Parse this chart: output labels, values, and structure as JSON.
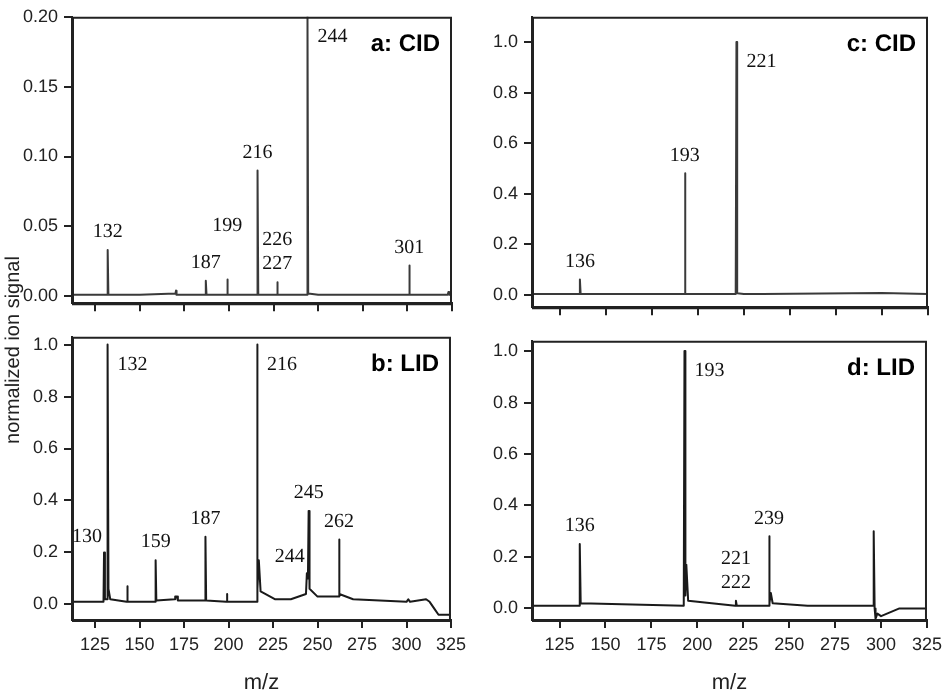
{
  "chart_data": [
    {
      "type": "line",
      "title": "a: CID",
      "ylabel": "normalized ion signal",
      "tick_labels": "y",
      "marker": "none",
      "xlim": [
        112,
        325
      ],
      "ylim": [
        -0.005,
        0.2
      ],
      "xticks": [
        125,
        150,
        175,
        200,
        225,
        250,
        275,
        300,
        325
      ],
      "yticks": [
        {
          "value": 0,
          "label": "0.00"
        },
        0.05,
        {
          "value": 0.1,
          "label": "0.10"
        },
        0.15,
        {
          "value": 0.2,
          "label": "0.20"
        }
      ],
      "x": [
        112,
        125,
        131.6,
        132,
        132.4,
        150,
        170,
        170.3,
        170.6,
        186.6,
        187,
        187.4,
        198.6,
        199,
        199.4,
        215.6,
        216,
        216.4,
        226.6,
        227,
        227.4,
        243.6,
        244,
        244.4,
        250,
        300.6,
        301,
        301.4,
        322.6,
        323,
        323.4,
        325
      ],
      "series": [
        {
          "color": "#3a3a3a",
          "values": [
            0.001,
            0.001,
            0.001,
            0.033,
            0.001,
            0.001,
            0.002,
            0.004,
            0.001,
            0.001,
            0.011,
            0.001,
            0.001,
            0.012,
            0.001,
            0.001,
            0.09,
            0.001,
            0.001,
            0.01,
            0.001,
            0.001,
            0.2,
            0.002,
            0.001,
            0.001,
            0.022,
            0.001,
            0.001,
            0.003,
            0.001,
            0.001
          ]
        }
      ],
      "annotations": [
        {
          "text": "132",
          "x": 132,
          "y": 0.033
        },
        {
          "text": "187",
          "x": 187,
          "y": 0.011
        },
        {
          "text": "199",
          "x": 199,
          "y": 0.012
        },
        {
          "text": "216",
          "x": 216,
          "y": 0.09
        },
        {
          "text": "226",
          "x": 227,
          "y": 0.01
        },
        {
          "text": "227",
          "x": 227,
          "y": 0.01
        },
        {
          "text": "244",
          "x": 244,
          "y": 0.2
        },
        {
          "text": "301",
          "x": 301,
          "y": 0.022
        }
      ]
    },
    {
      "type": "line",
      "title": "b: LID",
      "xlabel": "m/z",
      "marker": "none",
      "xlim": [
        112,
        325
      ],
      "ylim": [
        -0.06,
        1.03
      ],
      "xticks": [
        125,
        150,
        175,
        200,
        225,
        250,
        275,
        300,
        325
      ],
      "yticks": [
        {
          "value": 0,
          "label": "0.0"
        },
        0.2,
        0.4,
        0.6,
        0.8,
        {
          "value": 1,
          "label": "1.0"
        }
      ],
      "x": [
        112,
        125,
        129.7,
        130,
        130.5,
        131.6,
        132,
        132.5,
        133.5,
        142.7,
        143,
        143.4,
        158.7,
        159,
        159.4,
        169.7,
        170,
        171,
        171.5,
        186.7,
        187,
        187.4,
        198.7,
        199,
        199.4,
        213,
        215.7,
        216,
        216.4,
        217,
        218,
        226,
        235,
        243.5,
        244,
        244.6,
        245,
        245.5,
        250,
        261.6,
        262,
        262.5,
        270,
        300,
        301,
        302,
        311,
        313,
        316,
        318,
        320,
        325
      ],
      "series": [
        {
          "color": "#1a1a1a",
          "values": [
            0.01,
            0.01,
            0.01,
            0.2,
            0.02,
            0.02,
            1.0,
            0.06,
            0.02,
            0.01,
            0.07,
            0.01,
            0.01,
            0.17,
            0.015,
            0.02,
            0.03,
            0.03,
            0.015,
            0.015,
            0.26,
            0.015,
            0.01,
            0.04,
            0.01,
            0.01,
            0.01,
            1.0,
            0.06,
            0.17,
            0.05,
            0.02,
            0.02,
            0.04,
            0.12,
            0.1,
            0.36,
            0.06,
            0.03,
            0.03,
            0.25,
            0.04,
            0.02,
            0.01,
            0.02,
            0.01,
            0.02,
            0.01,
            -0.02,
            -0.04,
            -0.04,
            -0.04
          ]
        }
      ],
      "annotations": [
        {
          "text": "130",
          "x": 130,
          "y": 0.2
        },
        {
          "text": "132",
          "x": 132,
          "y": 1.0
        },
        {
          "text": "159",
          "x": 159,
          "y": 0.17
        },
        {
          "text": "187",
          "x": 187,
          "y": 0.26
        },
        {
          "text": "216",
          "x": 216,
          "y": 1.0
        },
        {
          "text": "244",
          "x": 244,
          "y": 0.12
        },
        {
          "text": "245",
          "x": 245,
          "y": 0.36
        },
        {
          "text": "262",
          "x": 262,
          "y": 0.25
        }
      ]
    },
    {
      "type": "line",
      "title": "c: CID",
      "tick_labels": "y",
      "marker": "none",
      "xlim": [
        110,
        325
      ],
      "ylim": [
        -0.05,
        1.1
      ],
      "xticks": [
        125,
        150,
        175,
        200,
        225,
        250,
        275,
        300,
        325
      ],
      "yticks": [
        {
          "value": 0,
          "label": "0.0"
        },
        0.2,
        0.4,
        0.6,
        0.8,
        {
          "value": 1,
          "label": "1.0"
        }
      ],
      "x": [
        110,
        135.6,
        136,
        136.4,
        192.6,
        193,
        193.4,
        220.6,
        221,
        221.4,
        225,
        300,
        325
      ],
      "series": [
        {
          "color": "#3a3a3a",
          "values": [
            0.002,
            0.002,
            0.06,
            0.002,
            0.002,
            0.48,
            0.002,
            0.002,
            1.0,
            0.005,
            0.002,
            0.006,
            0.002
          ]
        }
      ],
      "annotations": [
        {
          "text": "136",
          "x": 136,
          "y": 0.06
        },
        {
          "text": "193",
          "x": 193,
          "y": 0.48
        },
        {
          "text": "221",
          "x": 221,
          "y": 1.0
        }
      ]
    },
    {
      "type": "line",
      "title": "d: LID",
      "xlabel": "m/z",
      "marker": "none",
      "xlim": [
        110,
        325
      ],
      "ylim": [
        -0.045,
        1.04
      ],
      "xticks": [
        125,
        150,
        175,
        200,
        225,
        250,
        275,
        300,
        325
      ],
      "yticks": [
        {
          "value": 0,
          "label": "0.0"
        },
        0.2,
        0.4,
        0.6,
        0.8,
        {
          "value": 1,
          "label": "1.0"
        }
      ],
      "x": [
        110,
        135.6,
        136,
        136.5,
        192.6,
        193,
        193.5,
        194,
        195,
        220.6,
        221,
        221.5,
        238.6,
        239,
        239.5,
        240,
        241,
        260,
        295.6,
        296,
        296.5,
        297,
        298,
        300,
        310,
        325
      ],
      "series": [
        {
          "color": "#1a1a1a",
          "values": [
            0.01,
            0.01,
            0.25,
            0.02,
            0.01,
            1.0,
            0.05,
            0.17,
            0.03,
            0.01,
            0.03,
            0.01,
            0.01,
            0.28,
            0.02,
            0.06,
            0.02,
            0.01,
            0.01,
            0.3,
            0.0,
            -0.04,
            -0.02,
            -0.03,
            0.0,
            0.0
          ]
        }
      ],
      "annotations": [
        {
          "text": "136",
          "x": 136,
          "y": 0.25
        },
        {
          "text": "193",
          "x": 193,
          "y": 1.0
        },
        {
          "text": "221",
          "x": 221,
          "y": 0.03
        },
        {
          "text": "222",
          "x": 221,
          "y": 0.03
        },
        {
          "text": "239",
          "x": 239,
          "y": 0.28
        }
      ]
    }
  ]
}
